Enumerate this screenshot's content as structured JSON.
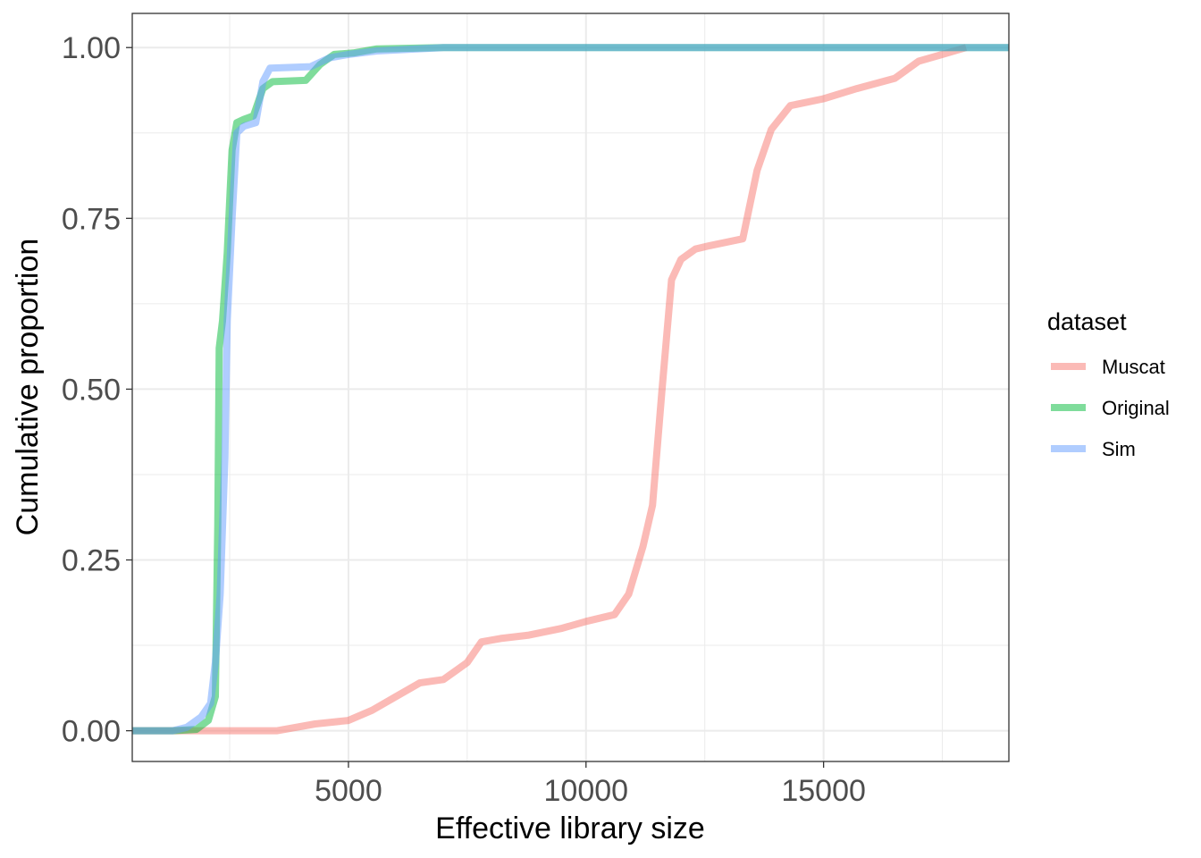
{
  "chart_data": {
    "type": "line",
    "title": "",
    "xlabel": "Effective library size",
    "ylabel": "Cumulative proportion",
    "xlim": [
      450,
      18900
    ],
    "ylim": [
      -0.045,
      1.05
    ],
    "x_ticks": [
      5000,
      10000,
      15000
    ],
    "x_tick_labels": [
      "5000",
      "10000",
      "15000"
    ],
    "y_ticks": [
      0,
      0.25,
      0.5,
      0.75,
      1
    ],
    "y_tick_labels": [
      "0.00",
      "0.25",
      "0.50",
      "0.75",
      "1.00"
    ],
    "grid": true,
    "legend": {
      "title": "dataset",
      "position": "right"
    },
    "series": [
      {
        "name": "Muscat",
        "color": "#F8766D",
        "x": [
          450,
          2000,
          3500,
          4300,
          5000,
          5500,
          6000,
          6500,
          7000,
          7500,
          7800,
          8200,
          8800,
          9500,
          10000,
          10600,
          10900,
          11200,
          11400,
          11600,
          11800,
          12000,
          12300,
          12600,
          13300,
          13600,
          13900,
          14300,
          15000,
          15700,
          16500,
          17000,
          17500,
          18000
        ],
        "y": [
          0,
          0,
          0,
          0.01,
          0.015,
          0.03,
          0.05,
          0.07,
          0.075,
          0.1,
          0.13,
          0.135,
          0.14,
          0.15,
          0.16,
          0.17,
          0.2,
          0.27,
          0.33,
          0.5,
          0.66,
          0.69,
          0.705,
          0.71,
          0.72,
          0.82,
          0.88,
          0.915,
          0.925,
          0.94,
          0.955,
          0.98,
          0.99,
          1.0
        ]
      },
      {
        "name": "Original",
        "color": "#00BA38",
        "x": [
          450,
          1300,
          1800,
          2050,
          2200,
          2250,
          2280,
          2350,
          2450,
          2550,
          2650,
          2800,
          3000,
          3200,
          3400,
          4100,
          4400,
          4700,
          5100,
          5600,
          7000,
          18900
        ],
        "y": [
          0,
          0,
          0.002,
          0.015,
          0.05,
          0.3,
          0.56,
          0.6,
          0.7,
          0.85,
          0.89,
          0.895,
          0.9,
          0.94,
          0.95,
          0.952,
          0.975,
          0.99,
          0.992,
          0.998,
          1.0,
          1.0
        ]
      },
      {
        "name": "Sim",
        "color": "#619CFF",
        "x": [
          450,
          1300,
          1600,
          1900,
          2100,
          2200,
          2300,
          2400,
          2450,
          2550,
          2650,
          2800,
          3050,
          3200,
          3350,
          4200,
          4600,
          5000,
          5600,
          7000,
          18900
        ],
        "y": [
          0,
          0,
          0.005,
          0.02,
          0.04,
          0.1,
          0.2,
          0.4,
          0.6,
          0.75,
          0.875,
          0.885,
          0.89,
          0.95,
          0.97,
          0.972,
          0.985,
          0.99,
          0.995,
          1.0,
          1.0
        ]
      }
    ]
  }
}
